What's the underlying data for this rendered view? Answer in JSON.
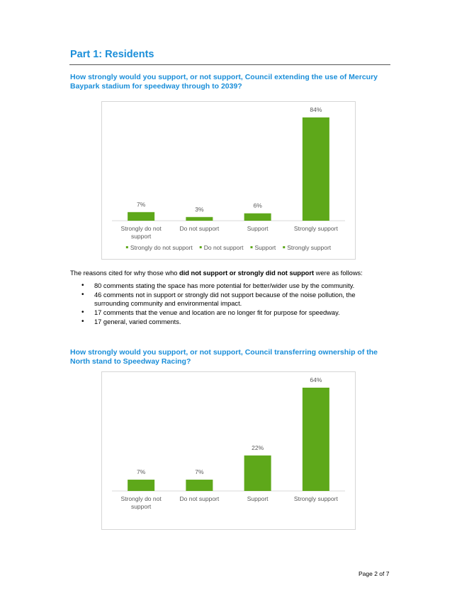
{
  "page": {
    "part_title": "Part 1: Residents",
    "footer": "Page 2 of 7"
  },
  "question1": "How strongly would you support, or not support, Council extending the use of Mercury Baypark stadium for speedway through to 2039?",
  "reasons": {
    "intro_before": "The reasons cited for why those who ",
    "intro_bold": "did not support or strongly did not support",
    "intro_after": " were as follows:",
    "items": [
      "80 comments stating the space has more potential for better/wider use by the community.",
      "46 comments not in support or strongly did not support because of the noise pollution, the surrounding community and environmental impact.",
      "17 comments that the venue and location are no longer fit for purpose for speedway.",
      "17 general, varied comments."
    ]
  },
  "question2": "How strongly would you support, or not support, Council transferring ownership of the North stand to Speedway Racing?",
  "colors": {
    "heading": "#1a8ed9",
    "bar": "#5ea81a"
  },
  "chart_data": [
    {
      "type": "bar",
      "title": "",
      "categories": [
        "Strongly do not support",
        "Do not support",
        "Support",
        "Strongly support"
      ],
      "values": [
        7,
        3,
        6,
        84
      ],
      "data_labels": [
        "7%",
        "3%",
        "6%",
        "84%"
      ],
      "ylim": [
        0,
        84
      ],
      "legend": [
        "Strongly do not support",
        "Do not support",
        "Support",
        "Strongly support"
      ],
      "legend_position": "bottom",
      "grid": false
    },
    {
      "type": "bar",
      "title": "",
      "categories": [
        "Strongly do not support",
        "Do not support",
        "Support",
        "Strongly support"
      ],
      "values": [
        7,
        7,
        22,
        64
      ],
      "data_labels": [
        "7%",
        "7%",
        "22%",
        "64%"
      ],
      "ylim": [
        0,
        64
      ],
      "legend_position": "none",
      "grid": false
    }
  ]
}
